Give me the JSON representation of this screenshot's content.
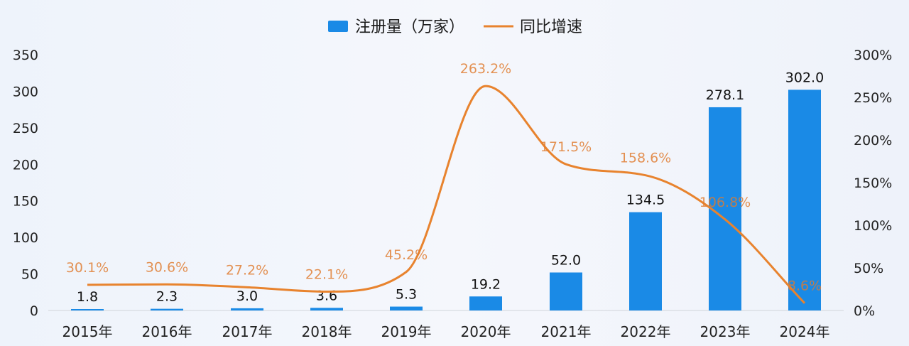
{
  "chart_data": {
    "type": "bar",
    "categories": [
      "2015年",
      "2016年",
      "2017年",
      "2018年",
      "2019年",
      "2020年",
      "2021年",
      "2022年",
      "2023年",
      "2024年"
    ],
    "series": [
      {
        "name": "注册量（万家）",
        "type": "bar",
        "axis": "left",
        "color": "#1a8ae6",
        "values": [
          1.8,
          2.3,
          3.0,
          3.6,
          5.3,
          19.2,
          52.0,
          134.5,
          278.1,
          302.0
        ],
        "labels": [
          "1.8",
          "2.3",
          "3.0",
          "3.6",
          "5.3",
          "19.2",
          "52.0",
          "134.5",
          "278.1",
          "302.0"
        ]
      },
      {
        "name": "同比增速",
        "type": "line",
        "axis": "right",
        "color": "#e8832e",
        "smooth": true,
        "values": [
          30.1,
          30.6,
          27.2,
          22.1,
          45.2,
          263.2,
          171.5,
          158.6,
          106.8,
          8.6
        ],
        "labels": [
          "30.1%",
          "30.6%",
          "27.2%",
          "22.1%",
          "45.2%",
          "263.2%",
          "171.5%",
          "158.6%",
          "106.8%",
          "8.6%"
        ]
      }
    ],
    "y_left": {
      "min": 0,
      "max": 350,
      "ticks": [
        "0",
        "50",
        "100",
        "150",
        "200",
        "250",
        "300",
        "350"
      ]
    },
    "y_right": {
      "min": 0,
      "max": 300,
      "ticks": [
        "0%",
        "50%",
        "100%",
        "150%",
        "200%",
        "250%",
        "300%"
      ]
    },
    "grid": false,
    "legend": "top-center"
  }
}
